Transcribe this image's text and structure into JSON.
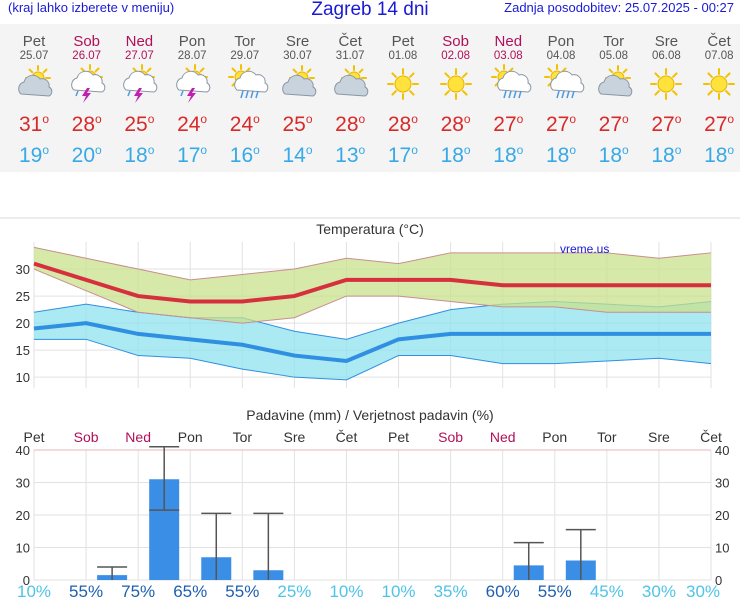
{
  "header": {
    "menu_hint": "(kraj lahko izberete v meniju)",
    "title": "Zagreb 14 dni",
    "updated": "Zadnja posodobitev: 25.07.2025 - 00:27"
  },
  "colors": {
    "weekday": "#555555",
    "weekend": "#b0105a",
    "tmax": "#d92a2a",
    "tmin": "#36a9e6",
    "bar": "#3a8ee6"
  },
  "days": [
    {
      "name": "Pet",
      "date": "25.07",
      "weekend": false,
      "icon": "cloud-sun-icon",
      "tmax": "31",
      "tmin": "19"
    },
    {
      "name": "Sob",
      "date": "26.07",
      "weekend": true,
      "icon": "thunderstorm-sun-icon",
      "tmax": "28",
      "tmin": "20"
    },
    {
      "name": "Ned",
      "date": "27.07",
      "weekend": true,
      "icon": "thunderstorm-sun-icon",
      "tmax": "25",
      "tmin": "18"
    },
    {
      "name": "Pon",
      "date": "28.07",
      "weekend": false,
      "icon": "thunderstorm-sun-icon",
      "tmax": "24",
      "tmin": "17"
    },
    {
      "name": "Tor",
      "date": "29.07",
      "weekend": false,
      "icon": "rain-sun-icon",
      "tmax": "24",
      "tmin": "16"
    },
    {
      "name": "Sre",
      "date": "30.07",
      "weekend": false,
      "icon": "cloud-sun-icon",
      "tmax": "25",
      "tmin": "14"
    },
    {
      "name": "Čet",
      "date": "31.07",
      "weekend": false,
      "icon": "cloud-sun-icon",
      "tmax": "28",
      "tmin": "13"
    },
    {
      "name": "Pet",
      "date": "01.08",
      "weekend": false,
      "icon": "sun-icon",
      "tmax": "28",
      "tmin": "17"
    },
    {
      "name": "Sob",
      "date": "02.08",
      "weekend": true,
      "icon": "sun-icon",
      "tmax": "28",
      "tmin": "18"
    },
    {
      "name": "Ned",
      "date": "03.08",
      "weekend": true,
      "icon": "rain-sun-icon",
      "tmax": "27",
      "tmin": "18"
    },
    {
      "name": "Pon",
      "date": "04.08",
      "weekend": false,
      "icon": "rain-sun-icon",
      "tmax": "27",
      "tmin": "18"
    },
    {
      "name": "Tor",
      "date": "05.08",
      "weekend": false,
      "icon": "cloud-sun-icon",
      "tmax": "27",
      "tmin": "18"
    },
    {
      "name": "Sre",
      "date": "06.08",
      "weekend": false,
      "icon": "sun-icon",
      "tmax": "27",
      "tmin": "18"
    },
    {
      "name": "Čet",
      "date": "07.08",
      "weekend": false,
      "icon": "sun-icon",
      "tmax": "27",
      "tmin": "18"
    }
  ],
  "chart_data": [
    {
      "type": "line",
      "title": "Temperatura (°C)",
      "watermark": "vreme.us",
      "ylim": [
        8,
        35
      ],
      "yticks": [
        10,
        15,
        20,
        25,
        30
      ],
      "grid": true,
      "series": [
        {
          "values": [
            31,
            28,
            25,
            24,
            24,
            25,
            28,
            28,
            28,
            27,
            27,
            27,
            27,
            27
          ],
          "color": "#d6303f"
        },
        {
          "values": [
            34,
            32,
            30,
            28,
            29,
            30,
            32,
            31,
            33,
            33,
            33,
            33,
            32,
            33
          ],
          "color": "#c98e8e"
        },
        {
          "values": [
            30,
            26,
            22,
            21,
            20,
            21,
            25,
            25,
            24,
            23,
            23,
            22,
            22,
            22
          ],
          "color": "#c98e8e"
        },
        {
          "values": [
            19,
            20,
            18,
            17,
            16,
            14,
            13,
            17,
            18,
            18,
            18,
            18,
            18,
            18
          ],
          "color": "#2f8fe0"
        },
        {
          "values": [
            22,
            23.5,
            22,
            21,
            21,
            18.5,
            17,
            20,
            22.5,
            23.5,
            24,
            23.5,
            23,
            24
          ],
          "color": "#2f8fe0"
        },
        {
          "values": [
            17,
            17,
            14,
            13.5,
            11.5,
            10,
            9.5,
            14,
            14,
            12.5,
            12.5,
            13,
            13.5,
            12.5
          ],
          "color": "#2f8fe0"
        }
      ]
    },
    {
      "type": "bar",
      "title": "Padavine (mm) / Verjetnost padavin (%)",
      "ylim": [
        0,
        40
      ],
      "yticks": [
        0,
        10,
        20,
        30,
        40
      ],
      "categories": [
        "Pet",
        "Sob",
        "Ned",
        "Pon",
        "Tor",
        "Sre",
        "Čet",
        "Pet",
        "Sob",
        "Ned",
        "Pon",
        "Tor",
        "Sre",
        "Čet"
      ],
      "weekend": [
        false,
        true,
        true,
        false,
        false,
        false,
        false,
        false,
        true,
        true,
        false,
        false,
        false,
        false
      ],
      "values": [
        0,
        1.5,
        31,
        7,
        3,
        0,
        0,
        0,
        0,
        4.5,
        6,
        0,
        0,
        0
      ],
      "error_high": [
        null,
        4,
        41,
        20.5,
        20.5,
        null,
        null,
        null,
        null,
        11.5,
        15.5,
        null,
        null,
        null
      ],
      "error_low": [
        null,
        0,
        21.5,
        0,
        0,
        null,
        null,
        null,
        null,
        0,
        0,
        null,
        null,
        null
      ],
      "probabilities": [
        "10%",
        "55%",
        "75%",
        "65%",
        "55%",
        "25%",
        "10%",
        "10%",
        "35%",
        "60%",
        "55%",
        "45%",
        "30%",
        "30%"
      ]
    }
  ]
}
